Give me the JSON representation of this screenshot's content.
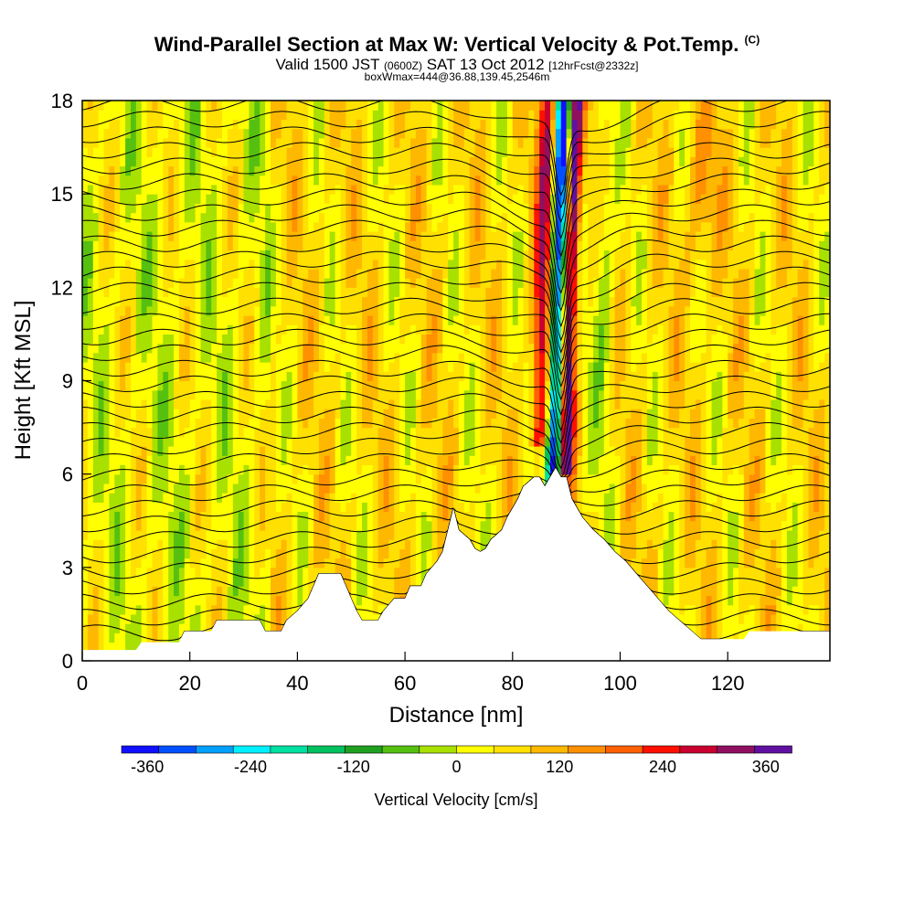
{
  "header": {
    "title": "Wind-Parallel Section at Max W: Vertical Velocity & Pot.Temp.",
    "copyright": "(C)",
    "valid_prefix": "Valid 1500 JST",
    "valid_zulu": "(0600Z)",
    "valid_date": "SAT 13 Oct 2012",
    "forecast": "[12hrFcst@2332z]",
    "box_info": "boxWmax=444@36.88,139.45,2546m"
  },
  "chart_data": {
    "type": "heatmap",
    "xlabel": "Distance [nm]",
    "ylabel": "Height [Kft MSL]",
    "xlim": [
      0,
      139
    ],
    "ylim": [
      0,
      18
    ],
    "x_ticks": [
      0,
      20,
      40,
      60,
      80,
      100,
      120
    ],
    "y_ticks": [
      0,
      3,
      6,
      9,
      12,
      15,
      18
    ],
    "colorbar": {
      "label": "Vertical Velocity [cm/s]",
      "min": -390,
      "max": 390,
      "step": 40,
      "ticks": [
        -360,
        -240,
        -120,
        0,
        120,
        240,
        360
      ],
      "colors": [
        "#1010ff",
        "#0050ff",
        "#00a0ff",
        "#00f0ff",
        "#00e0a0",
        "#00c060",
        "#20a020",
        "#55c010",
        "#a8e000",
        "#ffff00",
        "#ffe000",
        "#ffb800",
        "#ff9000",
        "#ff6000",
        "#ff1000",
        "#c80030",
        "#901060",
        "#6010a0"
      ]
    },
    "terrain_kft": [
      [
        0,
        0.35
      ],
      [
        10,
        0.35
      ],
      [
        11,
        0.6
      ],
      [
        18,
        0.6
      ],
      [
        19,
        0.95
      ],
      [
        24,
        0.95
      ],
      [
        25,
        1.3
      ],
      [
        33,
        1.3
      ],
      [
        34,
        0.95
      ],
      [
        37,
        0.95
      ],
      [
        38,
        1.3
      ],
      [
        40,
        1.6
      ],
      [
        42,
        2.0
      ],
      [
        43,
        2.4
      ],
      [
        44,
        2.8
      ],
      [
        48,
        2.8
      ],
      [
        49,
        2.4
      ],
      [
        50,
        2.0
      ],
      [
        51,
        1.6
      ],
      [
        52,
        1.3
      ],
      [
        55,
        1.3
      ],
      [
        56,
        1.6
      ],
      [
        58,
        2.0
      ],
      [
        60,
        2.0
      ],
      [
        61,
        2.4
      ],
      [
        63,
        2.4
      ],
      [
        64,
        2.8
      ],
      [
        66,
        3.2
      ],
      [
        67,
        3.5
      ],
      [
        68,
        4.2
      ],
      [
        69,
        4.9
      ],
      [
        70,
        4.2
      ],
      [
        72,
        3.9
      ],
      [
        73,
        3.6
      ],
      [
        74,
        3.5
      ],
      [
        75,
        3.6
      ],
      [
        76,
        3.9
      ],
      [
        78,
        4.2
      ],
      [
        79,
        4.6
      ],
      [
        80,
        4.9
      ],
      [
        81,
        5.2
      ],
      [
        82,
        5.6
      ],
      [
        84,
        5.9
      ],
      [
        85,
        5.9
      ],
      [
        86,
        5.6
      ],
      [
        87,
        5.9
      ],
      [
        88,
        6.2
      ],
      [
        89,
        5.9
      ],
      [
        90,
        5.9
      ],
      [
        91,
        5.2
      ],
      [
        92,
        4.9
      ],
      [
        93,
        4.6
      ],
      [
        95,
        4.2
      ],
      [
        97,
        3.9
      ],
      [
        99,
        3.5
      ],
      [
        101,
        3.2
      ],
      [
        103,
        2.8
      ],
      [
        105,
        2.4
      ],
      [
        107,
        2.0
      ],
      [
        109,
        1.6
      ],
      [
        111,
        1.3
      ],
      [
        113,
        1.0
      ],
      [
        115,
        0.7
      ],
      [
        123,
        0.7
      ],
      [
        124,
        0.95
      ],
      [
        127,
        0.95
      ],
      [
        128,
        0.95
      ],
      [
        139,
        0.95
      ]
    ],
    "isentrope_base_kft": [
      0.9,
      1.4,
      1.9,
      2.4,
      2.9,
      3.4,
      3.9,
      4.4,
      4.9,
      5.4,
      5.9,
      6.4,
      6.9,
      7.4,
      7.9,
      8.4,
      8.9,
      9.4,
      9.9,
      10.4,
      10.9,
      11.4,
      11.9,
      12.4,
      12.9,
      13.4,
      13.9,
      14.4,
      14.9,
      15.4,
      15.9,
      16.4,
      16.9,
      17.4,
      17.9
    ],
    "updraft_axis_nm": 89,
    "max_w_cm_s": 444
  }
}
